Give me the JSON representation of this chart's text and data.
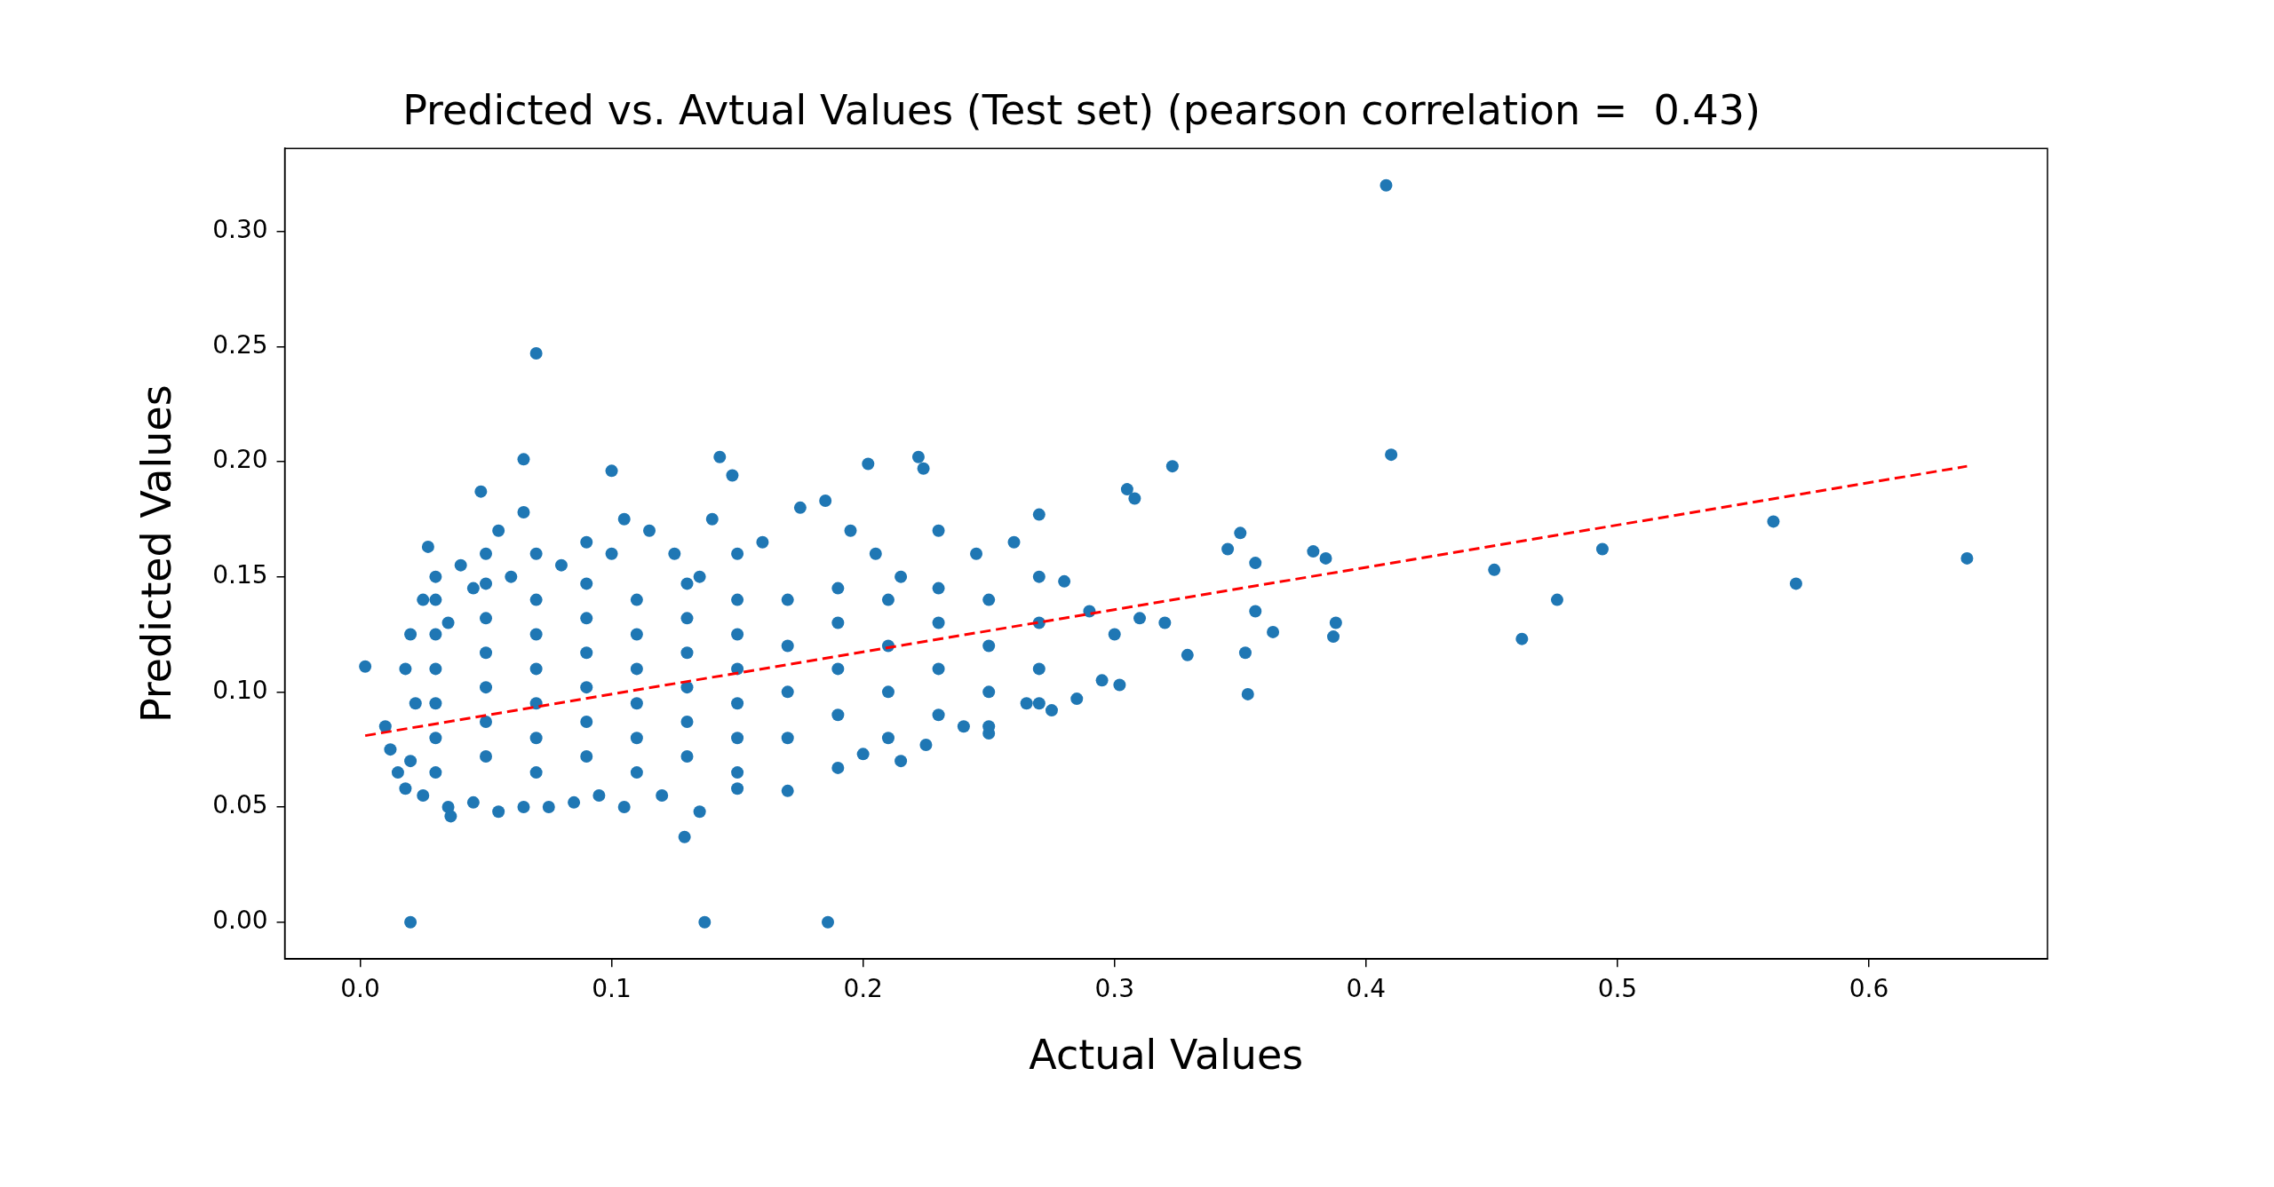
{
  "chart_data": {
    "type": "scatter",
    "title": "Predicted vs. Avtual Values (Test set) (pearson correlation =  0.43)",
    "xlabel": "Actual Values",
    "ylabel": "Predicted Values",
    "xlim": [
      -0.03,
      0.671
    ],
    "ylim": [
      -0.016,
      0.336
    ],
    "xticks": [
      {
        "value": 0,
        "label": "0.0"
      },
      {
        "value": 0.1,
        "label": "0.1"
      },
      {
        "value": 0.2,
        "label": "0.2"
      },
      {
        "value": 0.3,
        "label": "0.3"
      },
      {
        "value": 0.4,
        "label": "0.4"
      },
      {
        "value": 0.5,
        "label": "0.5"
      },
      {
        "value": 0.6,
        "label": "0.6"
      }
    ],
    "yticks": [
      {
        "value": 0,
        "label": "0.00"
      },
      {
        "value": 0.05,
        "label": "0.05"
      },
      {
        "value": 0.1,
        "label": "0.10"
      },
      {
        "value": 0.15,
        "label": "0.15"
      },
      {
        "value": 0.2,
        "label": "0.20"
      },
      {
        "value": 0.25,
        "label": "0.25"
      },
      {
        "value": 0.3,
        "label": "0.30"
      }
    ],
    "marker": "circle",
    "legend": false,
    "grid": false,
    "series": [
      {
        "color": "#1f77b4",
        "x": [
          0.002,
          0.02,
          0.137,
          0.186,
          0.07,
          0.408,
          0.41,
          0.639,
          0.571,
          0.562,
          0.494,
          0.476,
          0.462,
          0.451,
          0.388,
          0.387,
          0.379,
          0.384,
          0.363,
          0.356,
          0.356,
          0.352,
          0.353,
          0.35,
          0.345,
          0.323,
          0.305,
          0.308,
          0.302,
          0.329,
          0.143,
          0.222,
          0.224,
          0.202,
          0.148,
          0.1,
          0.065,
          0.048,
          0.027,
          0.129,
          0.036,
          0.01,
          0.012,
          0.015,
          0.018,
          0.02,
          0.022,
          0.018,
          0.02,
          0.025,
          0.03,
          0.035,
          0.04,
          0.045,
          0.05,
          0.055,
          0.06,
          0.065,
          0.07,
          0.08,
          0.09,
          0.1,
          0.105,
          0.115,
          0.125,
          0.135,
          0.14,
          0.15,
          0.16,
          0.175,
          0.185,
          0.195,
          0.205,
          0.215,
          0.23,
          0.245,
          0.26,
          0.27,
          0.28,
          0.29,
          0.3,
          0.31,
          0.32,
          0.025,
          0.035,
          0.045,
          0.055,
          0.065,
          0.075,
          0.085,
          0.095,
          0.105,
          0.12,
          0.135,
          0.15,
          0.17,
          0.19,
          0.2,
          0.215,
          0.225,
          0.24,
          0.25,
          0.265,
          0.275,
          0.285,
          0.295,
          0.03,
          0.03,
          0.03,
          0.03,
          0.03,
          0.03,
          0.05,
          0.05,
          0.05,
          0.05,
          0.05,
          0.05,
          0.07,
          0.07,
          0.07,
          0.07,
          0.07,
          0.07,
          0.09,
          0.09,
          0.09,
          0.09,
          0.09,
          0.09,
          0.11,
          0.11,
          0.11,
          0.11,
          0.11,
          0.11,
          0.13,
          0.13,
          0.13,
          0.13,
          0.13,
          0.13,
          0.15,
          0.15,
          0.15,
          0.15,
          0.15,
          0.15,
          0.17,
          0.17,
          0.17,
          0.17,
          0.19,
          0.19,
          0.19,
          0.19,
          0.21,
          0.21,
          0.21,
          0.21,
          0.23,
          0.23,
          0.23,
          0.23,
          0.25,
          0.25,
          0.25,
          0.25,
          0.27,
          0.27,
          0.27,
          0.27
        ],
        "values": [
          0.111,
          0.0,
          0.0,
          0.0,
          0.247,
          0.32,
          0.203,
          0.158,
          0.147,
          0.174,
          0.162,
          0.14,
          0.123,
          0.153,
          0.13,
          0.124,
          0.161,
          0.158,
          0.126,
          0.135,
          0.156,
          0.117,
          0.099,
          0.169,
          0.162,
          0.198,
          0.188,
          0.184,
          0.103,
          0.116,
          0.202,
          0.202,
          0.197,
          0.199,
          0.194,
          0.196,
          0.201,
          0.187,
          0.163,
          0.037,
          0.046,
          0.085,
          0.075,
          0.065,
          0.058,
          0.07,
          0.095,
          0.11,
          0.125,
          0.14,
          0.15,
          0.13,
          0.155,
          0.145,
          0.16,
          0.17,
          0.15,
          0.178,
          0.16,
          0.155,
          0.165,
          0.16,
          0.175,
          0.17,
          0.16,
          0.15,
          0.175,
          0.16,
          0.165,
          0.18,
          0.183,
          0.17,
          0.16,
          0.15,
          0.17,
          0.16,
          0.165,
          0.177,
          0.148,
          0.135,
          0.125,
          0.132,
          0.13,
          0.055,
          0.05,
          0.052,
          0.048,
          0.05,
          0.05,
          0.052,
          0.055,
          0.05,
          0.055,
          0.048,
          0.058,
          0.057,
          0.067,
          0.073,
          0.07,
          0.077,
          0.085,
          0.082,
          0.095,
          0.092,
          0.097,
          0.105,
          0.065,
          0.08,
          0.095,
          0.11,
          0.125,
          0.14,
          0.072,
          0.087,
          0.102,
          0.117,
          0.132,
          0.147,
          0.065,
          0.08,
          0.095,
          0.11,
          0.125,
          0.14,
          0.072,
          0.087,
          0.102,
          0.117,
          0.132,
          0.147,
          0.065,
          0.08,
          0.095,
          0.11,
          0.125,
          0.14,
          0.072,
          0.087,
          0.102,
          0.117,
          0.132,
          0.147,
          0.065,
          0.08,
          0.095,
          0.11,
          0.125,
          0.14,
          0.08,
          0.1,
          0.12,
          0.14,
          0.09,
          0.11,
          0.13,
          0.145,
          0.08,
          0.1,
          0.12,
          0.14,
          0.09,
          0.11,
          0.13,
          0.145,
          0.085,
          0.1,
          0.12,
          0.14,
          0.095,
          0.11,
          0.13,
          0.15
        ]
      },
      {
        "type": "line",
        "color": "#ff0000",
        "line_style": "dashed",
        "marker": "none",
        "x": [
          0.002,
          0.639
        ],
        "values": [
          0.081,
          0.198
        ]
      }
    ]
  }
}
